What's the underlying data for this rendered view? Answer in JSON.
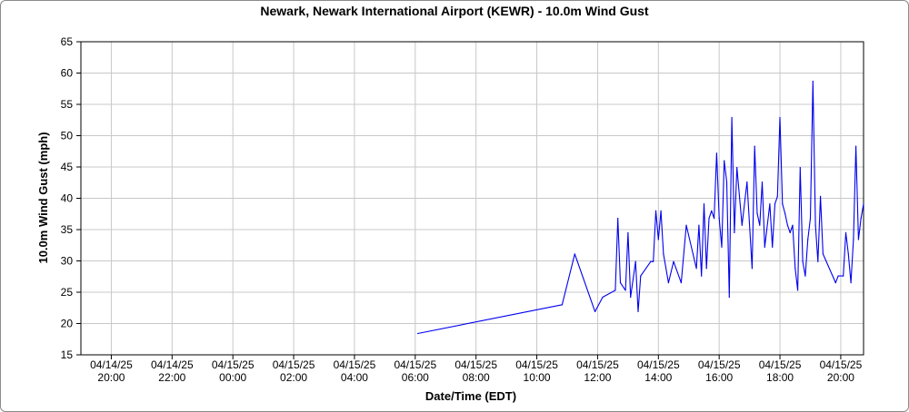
{
  "chart_data": {
    "type": "line",
    "title": "Newark, Newark International Airport (KEWR) - 10.0m Wind Gust",
    "xlabel": "Date/Time (EDT)",
    "ylabel": "10.0m Wind Gust (mph)",
    "ylim": [
      15,
      65
    ],
    "yticks": [
      15,
      20,
      25,
      30,
      35,
      40,
      45,
      50,
      55,
      60,
      65
    ],
    "xlim": [
      "2025-04-14 19:00",
      "2025-04-15 20:45"
    ],
    "xticks": [
      {
        "t": "2025-04-14 20:00",
        "date": "04/14/25",
        "time": "20:00"
      },
      {
        "t": "2025-04-14 22:00",
        "date": "04/14/25",
        "time": "22:00"
      },
      {
        "t": "2025-04-15 00:00",
        "date": "04/15/25",
        "time": "00:00"
      },
      {
        "t": "2025-04-15 02:00",
        "date": "04/15/25",
        "time": "02:00"
      },
      {
        "t": "2025-04-15 04:00",
        "date": "04/15/25",
        "time": "04:00"
      },
      {
        "t": "2025-04-15 06:00",
        "date": "04/15/25",
        "time": "06:00"
      },
      {
        "t": "2025-04-15 08:00",
        "date": "04/15/25",
        "time": "08:00"
      },
      {
        "t": "2025-04-15 10:00",
        "date": "04/15/25",
        "time": "10:00"
      },
      {
        "t": "2025-04-15 12:00",
        "date": "04/15/25",
        "time": "12:00"
      },
      {
        "t": "2025-04-15 14:00",
        "date": "04/15/25",
        "time": "14:00"
      },
      {
        "t": "2025-04-15 16:00",
        "date": "04/15/25",
        "time": "16:00"
      },
      {
        "t": "2025-04-15 18:00",
        "date": "04/15/25",
        "time": "18:00"
      },
      {
        "t": "2025-04-15 20:00",
        "date": "04/15/25",
        "time": "20:00"
      }
    ],
    "grid": true,
    "series": [
      {
        "color": "#0000ee",
        "points": [
          [
            "2025-04-15 06:05",
            18.4
          ],
          [
            "2025-04-15 10:50",
            23.0
          ],
          [
            "2025-04-15 11:15",
            31.1
          ],
          [
            "2025-04-15 11:55",
            21.9
          ],
          [
            "2025-04-15 12:10",
            24.2
          ],
          [
            "2025-04-15 12:35",
            25.3
          ],
          [
            "2025-04-15 12:40",
            36.8
          ],
          [
            "2025-04-15 12:45",
            26.5
          ],
          [
            "2025-04-15 12:55",
            25.3
          ],
          [
            "2025-04-15 13:00",
            34.5
          ],
          [
            "2025-04-15 13:05",
            24.2
          ],
          [
            "2025-04-15 13:15",
            29.9
          ],
          [
            "2025-04-15 13:20",
            21.9
          ],
          [
            "2025-04-15 13:25",
            27.6
          ],
          [
            "2025-04-15 13:45",
            29.9
          ],
          [
            "2025-04-15 13:50",
            29.9
          ],
          [
            "2025-04-15 13:55",
            38.0
          ],
          [
            "2025-04-15 14:00",
            33.4
          ],
          [
            "2025-04-15 14:05",
            38.0
          ],
          [
            "2025-04-15 14:10",
            31.1
          ],
          [
            "2025-04-15 14:20",
            26.5
          ],
          [
            "2025-04-15 14:30",
            29.9
          ],
          [
            "2025-04-15 14:45",
            26.5
          ],
          [
            "2025-04-15 14:55",
            35.7
          ],
          [
            "2025-04-15 15:15",
            28.8
          ],
          [
            "2025-04-15 15:20",
            35.7
          ],
          [
            "2025-04-15 15:25",
            27.6
          ],
          [
            "2025-04-15 15:30",
            39.1
          ],
          [
            "2025-04-15 15:35",
            28.8
          ],
          [
            "2025-04-15 15:40",
            36.8
          ],
          [
            "2025-04-15 15:45",
            38.0
          ],
          [
            "2025-04-15 15:50",
            36.8
          ],
          [
            "2025-04-15 15:55",
            47.2
          ],
          [
            "2025-04-15 16:00",
            36.8
          ],
          [
            "2025-04-15 16:05",
            32.2
          ],
          [
            "2025-04-15 16:10",
            46.0
          ],
          [
            "2025-04-15 16:15",
            42.6
          ],
          [
            "2025-04-15 16:20",
            24.2
          ],
          [
            "2025-04-15 16:25",
            52.9
          ],
          [
            "2025-04-15 16:30",
            34.5
          ],
          [
            "2025-04-15 16:35",
            44.9
          ],
          [
            "2025-04-15 16:45",
            35.7
          ],
          [
            "2025-04-15 16:55",
            42.6
          ],
          [
            "2025-04-15 17:05",
            28.8
          ],
          [
            "2025-04-15 17:10",
            48.3
          ],
          [
            "2025-04-15 17:15",
            37.6
          ],
          [
            "2025-04-15 17:20",
            35.7
          ],
          [
            "2025-04-15 17:25",
            42.6
          ],
          [
            "2025-04-15 17:30",
            32.2
          ],
          [
            "2025-04-15 17:40",
            39.1
          ],
          [
            "2025-04-15 17:45",
            32.2
          ],
          [
            "2025-04-15 17:50",
            39.1
          ],
          [
            "2025-04-15 17:55",
            40.3
          ],
          [
            "2025-04-15 18:00",
            52.9
          ],
          [
            "2025-04-15 18:05",
            39.1
          ],
          [
            "2025-04-15 18:10",
            37.6
          ],
          [
            "2025-04-15 18:15",
            35.7
          ],
          [
            "2025-04-15 18:20",
            34.5
          ],
          [
            "2025-04-15 18:25",
            35.7
          ],
          [
            "2025-04-15 18:30",
            28.8
          ],
          [
            "2025-04-15 18:35",
            25.3
          ],
          [
            "2025-04-15 18:40",
            44.9
          ],
          [
            "2025-04-15 18:45",
            29.9
          ],
          [
            "2025-04-15 18:50",
            27.6
          ],
          [
            "2025-04-15 18:55",
            33.4
          ],
          [
            "2025-04-15 19:00",
            36.8
          ],
          [
            "2025-04-15 19:05",
            58.7
          ],
          [
            "2025-04-15 19:10",
            35.7
          ],
          [
            "2025-04-15 19:15",
            29.9
          ],
          [
            "2025-04-15 19:20",
            40.3
          ],
          [
            "2025-04-15 19:25",
            31.1
          ],
          [
            "2025-04-15 19:50",
            26.5
          ],
          [
            "2025-04-15 19:55",
            27.6
          ],
          [
            "2025-04-15 20:05",
            27.6
          ],
          [
            "2025-04-15 20:10",
            34.5
          ],
          [
            "2025-04-15 20:15",
            31.1
          ],
          [
            "2025-04-15 20:20",
            26.5
          ],
          [
            "2025-04-15 20:25",
            33.4
          ],
          [
            "2025-04-15 20:30",
            48.3
          ],
          [
            "2025-04-15 20:35",
            33.4
          ],
          [
            "2025-04-15 20:40",
            36.8
          ],
          [
            "2025-04-15 20:45",
            39.1
          ]
        ]
      }
    ]
  }
}
